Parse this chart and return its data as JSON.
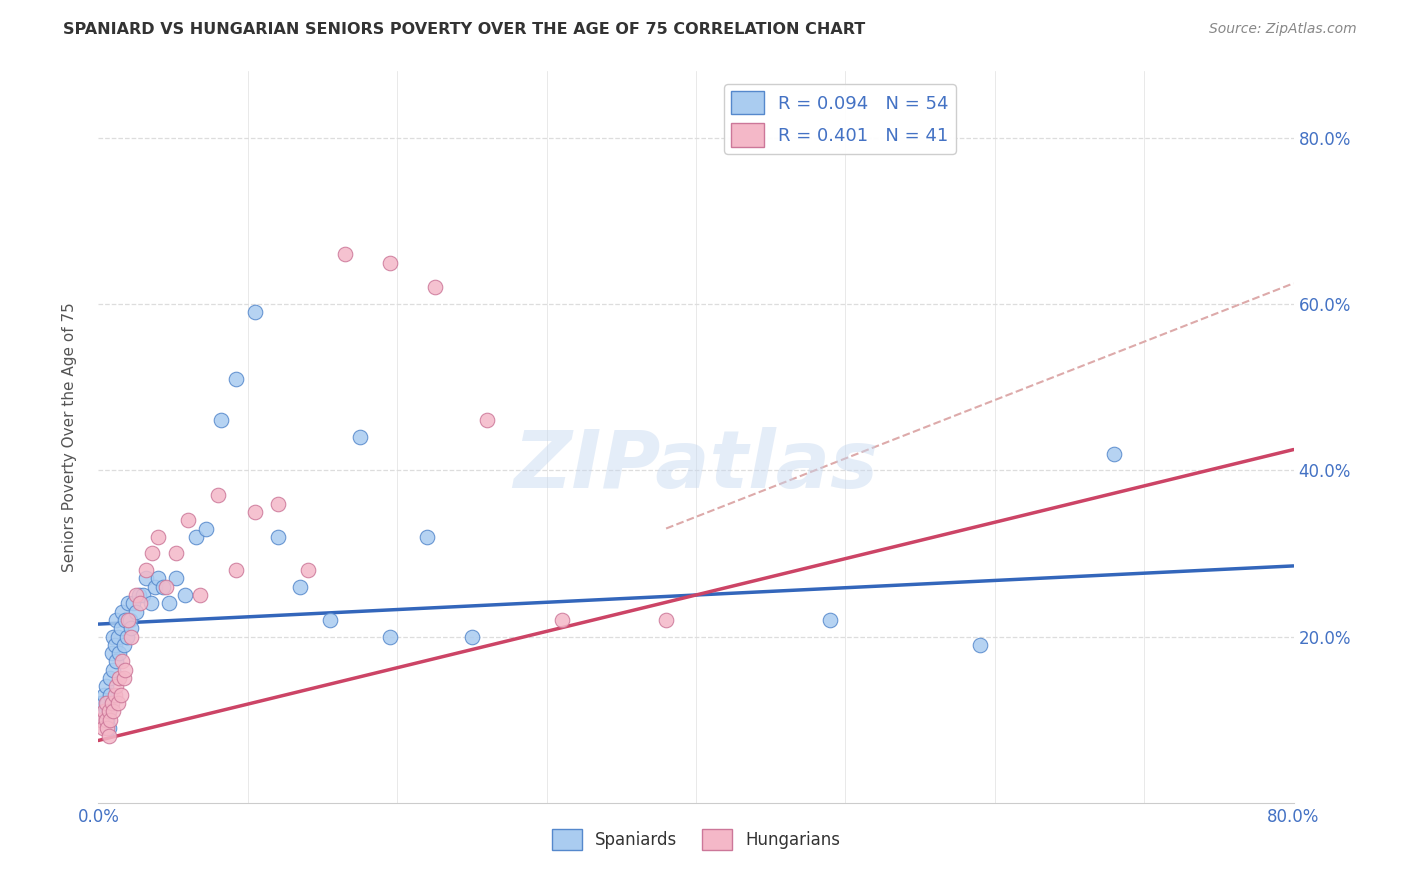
{
  "title": "SPANIARD VS HUNGARIAN SENIORS POVERTY OVER THE AGE OF 75 CORRELATION CHART",
  "source": "Source: ZipAtlas.com",
  "ylabel": "Seniors Poverty Over the Age of 75",
  "ytick_labels": [
    "20.0%",
    "40.0%",
    "60.0%",
    "80.0%"
  ],
  "ytick_values": [
    0.2,
    0.4,
    0.6,
    0.8
  ],
  "legend_r1": "R = 0.094   N = 54",
  "legend_r2": "R = 0.401   N = 41",
  "blue_face": "#aaccf0",
  "blue_edge": "#5588cc",
  "pink_face": "#f4b8c8",
  "pink_edge": "#cc7799",
  "blue_line_color": "#3366bb",
  "pink_line_color": "#cc4466",
  "dash_color": "#ddaaaa",
  "spaniards_x": [
    0.002,
    0.003,
    0.004,
    0.005,
    0.005,
    0.006,
    0.006,
    0.007,
    0.007,
    0.008,
    0.008,
    0.009,
    0.01,
    0.01,
    0.011,
    0.012,
    0.012,
    0.013,
    0.014,
    0.015,
    0.016,
    0.017,
    0.018,
    0.019,
    0.02,
    0.021,
    0.022,
    0.023,
    0.025,
    0.027,
    0.03,
    0.032,
    0.035,
    0.038,
    0.04,
    0.043,
    0.047,
    0.052,
    0.058,
    0.065,
    0.072,
    0.082,
    0.092,
    0.105,
    0.12,
    0.135,
    0.155,
    0.175,
    0.195,
    0.22,
    0.25,
    0.49,
    0.59,
    0.68
  ],
  "spaniards_y": [
    0.12,
    0.1,
    0.13,
    0.11,
    0.14,
    0.1,
    0.12,
    0.09,
    0.11,
    0.13,
    0.15,
    0.18,
    0.16,
    0.2,
    0.19,
    0.17,
    0.22,
    0.2,
    0.18,
    0.21,
    0.23,
    0.19,
    0.22,
    0.2,
    0.24,
    0.22,
    0.21,
    0.24,
    0.23,
    0.25,
    0.25,
    0.27,
    0.24,
    0.26,
    0.27,
    0.26,
    0.24,
    0.27,
    0.25,
    0.32,
    0.33,
    0.46,
    0.51,
    0.59,
    0.32,
    0.26,
    0.22,
    0.44,
    0.2,
    0.32,
    0.2,
    0.22,
    0.19,
    0.42
  ],
  "hungarians_x": [
    0.002,
    0.003,
    0.004,
    0.005,
    0.005,
    0.006,
    0.007,
    0.007,
    0.008,
    0.009,
    0.01,
    0.011,
    0.012,
    0.013,
    0.014,
    0.015,
    0.016,
    0.017,
    0.018,
    0.02,
    0.022,
    0.025,
    0.028,
    0.032,
    0.036,
    0.04,
    0.045,
    0.052,
    0.06,
    0.068,
    0.08,
    0.092,
    0.105,
    0.12,
    0.14,
    0.165,
    0.195,
    0.225,
    0.26,
    0.31,
    0.38
  ],
  "hungarians_y": [
    0.1,
    0.09,
    0.11,
    0.1,
    0.12,
    0.09,
    0.11,
    0.08,
    0.1,
    0.12,
    0.11,
    0.13,
    0.14,
    0.12,
    0.15,
    0.13,
    0.17,
    0.15,
    0.16,
    0.22,
    0.2,
    0.25,
    0.24,
    0.28,
    0.3,
    0.32,
    0.26,
    0.3,
    0.34,
    0.25,
    0.37,
    0.28,
    0.35,
    0.36,
    0.28,
    0.66,
    0.65,
    0.62,
    0.46,
    0.22,
    0.22
  ],
  "blue_trend": [
    0.0,
    0.215,
    0.8,
    0.285
  ],
  "pink_trend": [
    0.0,
    0.075,
    0.8,
    0.425
  ],
  "dash_line": [
    0.38,
    0.33,
    0.8,
    0.625
  ],
  "xlim": [
    0.0,
    0.8
  ],
  "ylim": [
    0.0,
    0.88
  ],
  "watermark": "ZIPatlas",
  "bg_color": "#ffffff",
  "grid_color": "#dddddd",
  "title_color": "#333333",
  "axis_label_color": "#4472c4",
  "source_color": "#888888"
}
